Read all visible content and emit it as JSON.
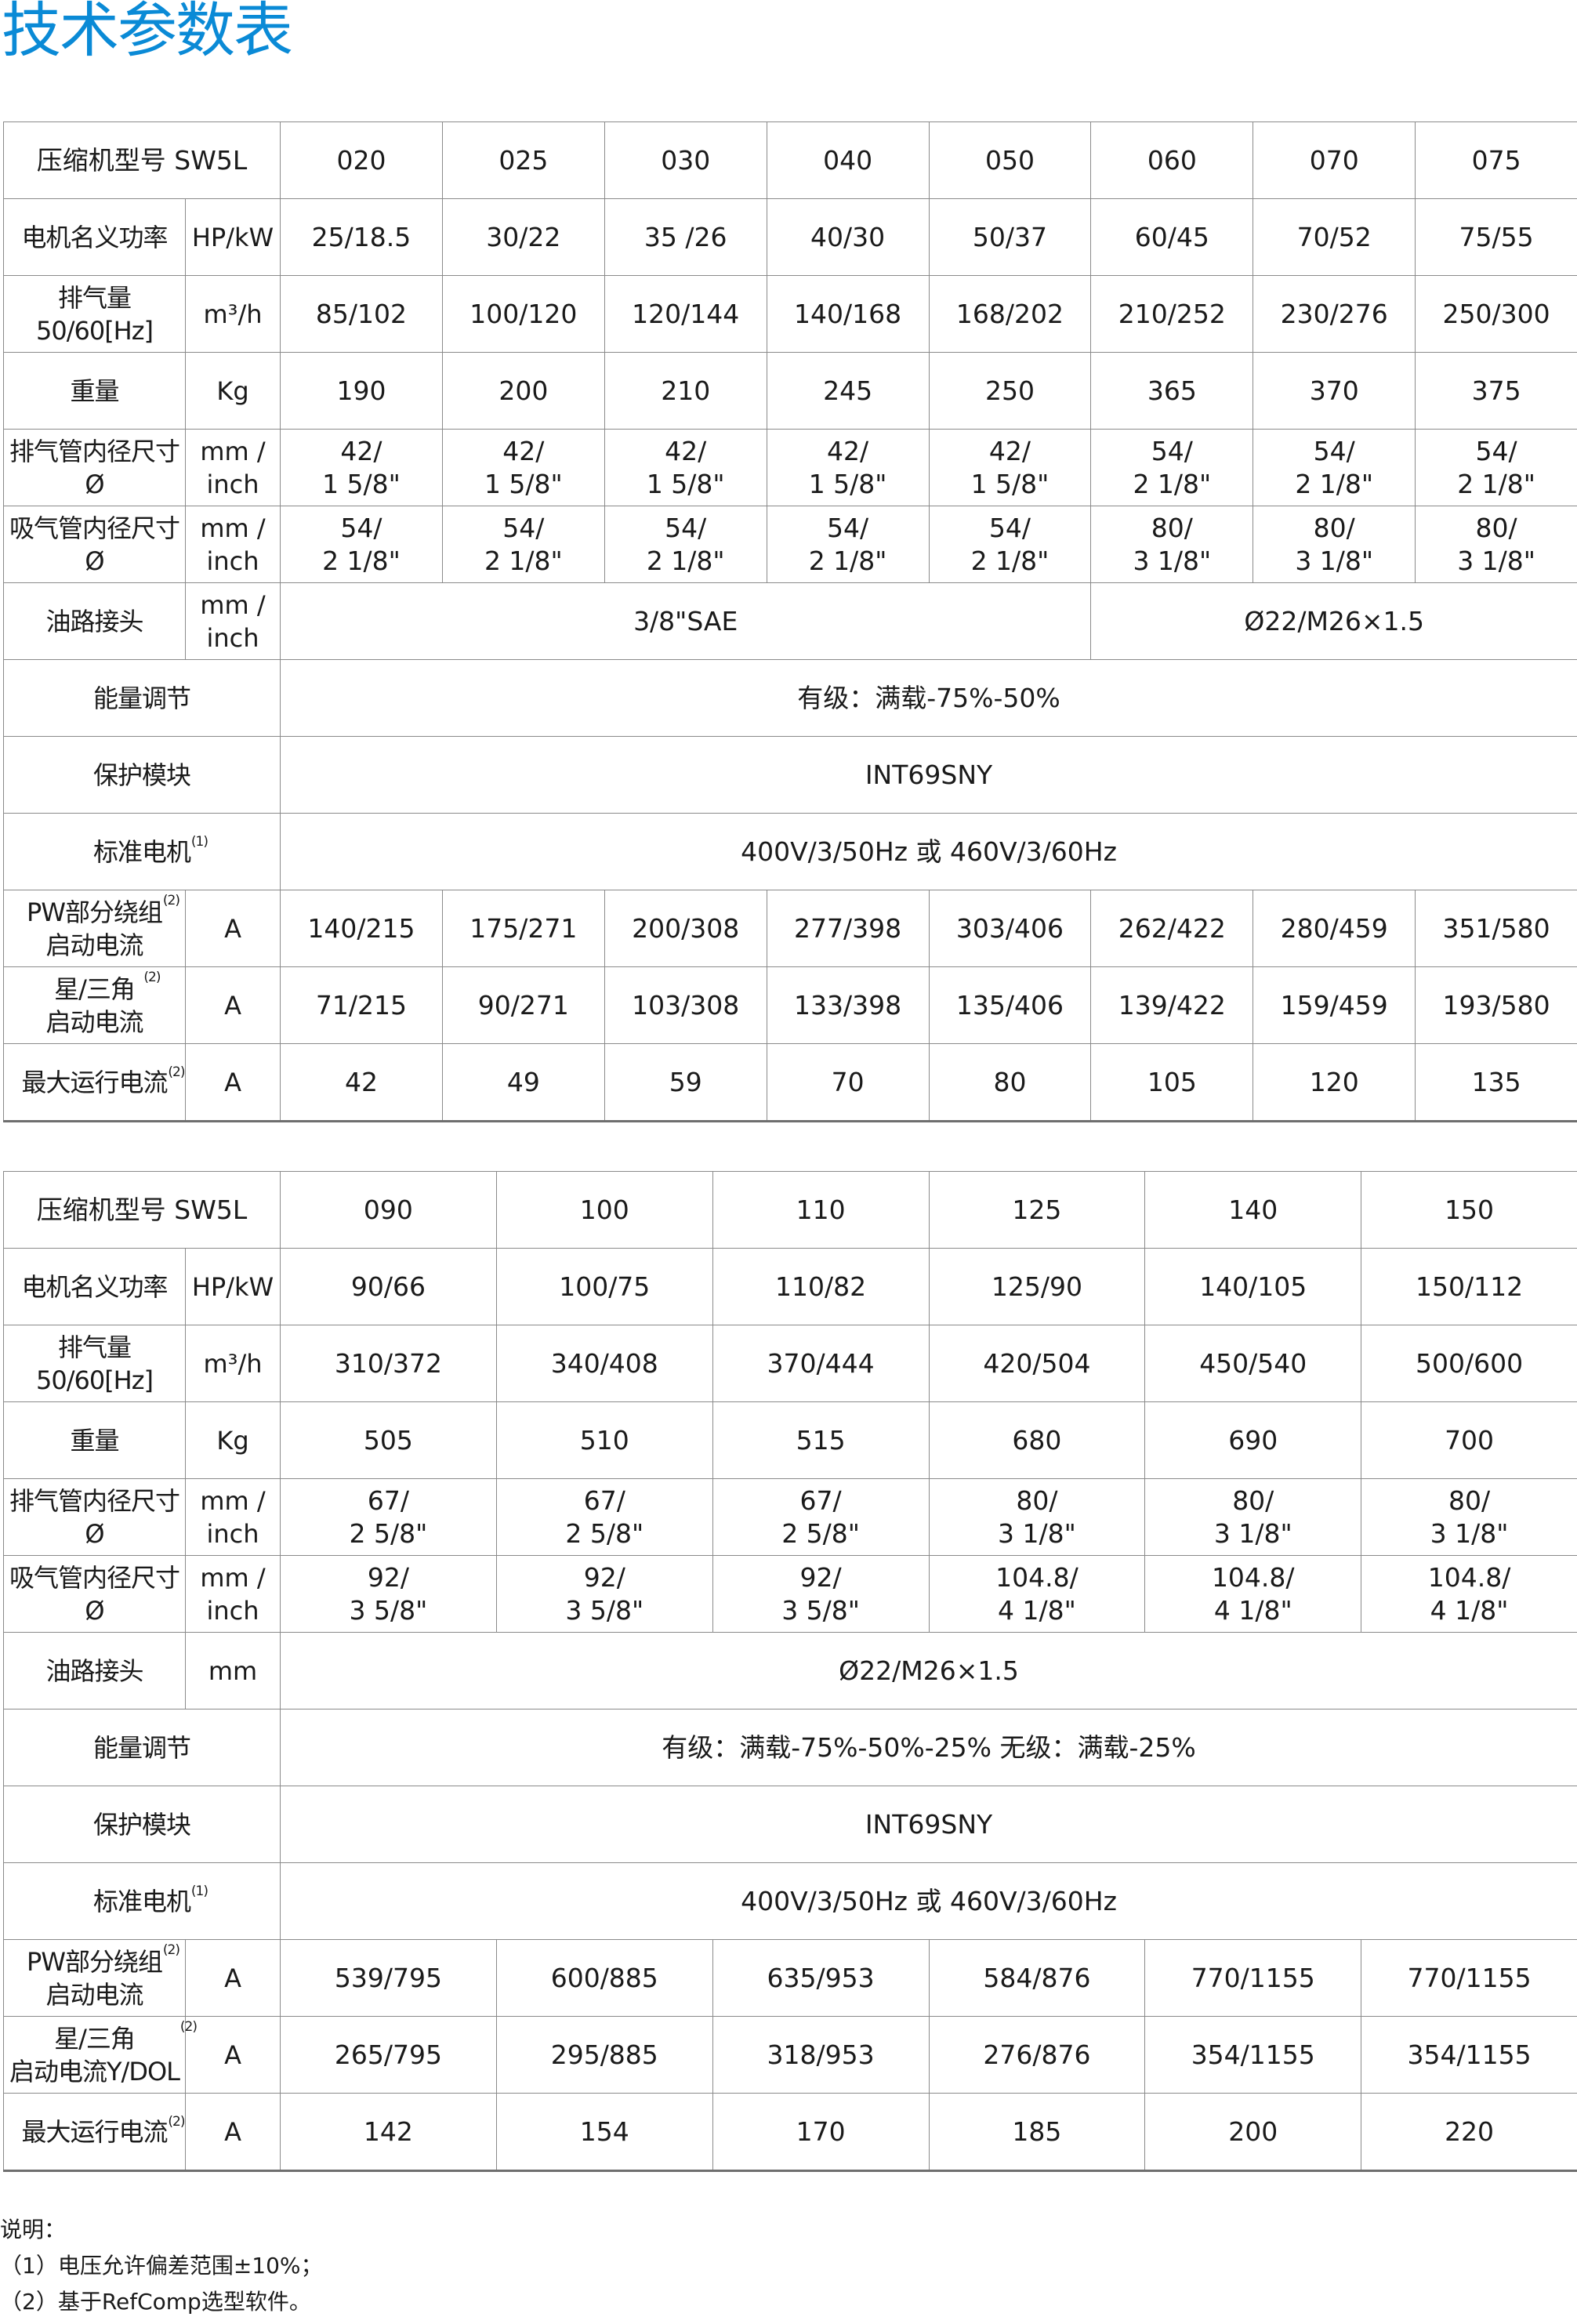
{
  "title": "技术参数表",
  "table1": {
    "header_label": "压缩机型号 SW5L",
    "models": [
      "020",
      "025",
      "030",
      "040",
      "050",
      "060",
      "070",
      "075"
    ],
    "rows": [
      {
        "label": "电机名义功率",
        "unit": "HP/kW",
        "values": [
          "25/18.5",
          "30/22",
          "35 /26",
          "40/30",
          "50/37",
          "60/45",
          "70/52",
          "75/55"
        ]
      },
      {
        "label": "排气量\n50/60[Hz]",
        "unit": "m³/h",
        "values": [
          "85/102",
          "100/120",
          "120/144",
          "140/168",
          "168/202",
          "210/252",
          "230/276",
          "250/300"
        ]
      },
      {
        "label": "重量",
        "unit": "Kg",
        "values": [
          "190",
          "200",
          "210",
          "245",
          "250",
          "365",
          "370",
          "375"
        ]
      },
      {
        "label": "排气管内径尺寸Ø",
        "unit": "mm /\ninch",
        "values": [
          "42/\n1 5/8\"",
          "42/\n1 5/8\"",
          "42/\n1 5/8\"",
          "42/\n1 5/8\"",
          "42/\n1 5/8\"",
          "54/\n2 1/8\"",
          "54/\n2 1/8\"",
          "54/\n2 1/8\""
        ]
      },
      {
        "label": "吸气管内径尺寸Ø",
        "unit": "mm /\ninch",
        "values": [
          "54/\n2 1/8\"",
          "54/\n2 1/8\"",
          "54/\n2 1/8\"",
          "54/\n2 1/8\"",
          "54/\n2 1/8\"",
          "80/\n3 1/8\"",
          "80/\n3 1/8\"",
          "80/\n3 1/8\""
        ]
      },
      {
        "label": "油路接头",
        "unit": "mm /\ninch",
        "spans": [
          {
            "text": "3/8\"SAE",
            "colspan": 5
          },
          {
            "text": "Ø22/M26×1.5",
            "colspan": 3
          }
        ]
      },
      {
        "label": "能量调节",
        "spans": [
          {
            "text": "有级：满载-75%-50%",
            "colspan": 8
          }
        ]
      },
      {
        "label": "保护模块",
        "spans": [
          {
            "text": "INT69SNY",
            "colspan": 8
          }
        ]
      },
      {
        "label": "标准电机",
        "sup": "(1)",
        "spans": [
          {
            "text": "400V/3/50Hz 或 460V/3/60Hz",
            "colspan": 8
          }
        ]
      },
      {
        "label": "PW部分绕组\n启动电流",
        "sup": "(2)",
        "unit": "A",
        "values": [
          "140/215",
          "175/271",
          "200/308",
          "277/398",
          "303/406",
          "262/422",
          "280/459",
          "351/580"
        ]
      },
      {
        "label": "星/三角\n启动电流",
        "sup": "(2)",
        "unit": "A",
        "values": [
          "71/215",
          "90/271",
          "103/308",
          "133/398",
          "135/406",
          "139/422",
          "159/459",
          "193/580"
        ]
      },
      {
        "label": "最大运行电流",
        "sup": "(2)",
        "unit": "A",
        "values": [
          "42",
          "49",
          "59",
          "70",
          "80",
          "105",
          "120",
          "135"
        ]
      }
    ]
  },
  "table2": {
    "header_label": "压缩机型号 SW5L",
    "models": [
      "090",
      "100",
      "110",
      "125",
      "140",
      "150"
    ],
    "rows": [
      {
        "label": "电机名义功率",
        "unit": "HP/kW",
        "values": [
          "90/66",
          "100/75",
          "110/82",
          "125/90",
          "140/105",
          "150/112"
        ]
      },
      {
        "label": "排气量\n50/60[Hz]",
        "unit": "m³/h",
        "values": [
          "310/372",
          "340/408",
          "370/444",
          "420/504",
          "450/540",
          "500/600"
        ]
      },
      {
        "label": "重量",
        "unit": "Kg",
        "values": [
          "505",
          "510",
          "515",
          "680",
          "690",
          "700"
        ]
      },
      {
        "label": "排气管内径尺寸Ø",
        "unit": "mm /\ninch",
        "values": [
          "67/\n2 5/8\"",
          "67/\n2 5/8\"",
          "67/\n2 5/8\"",
          "80/\n3 1/8\"",
          "80/\n3 1/8\"",
          "80/\n3 1/8\""
        ]
      },
      {
        "label": "吸气管内径尺寸Ø",
        "unit": "mm /\ninch",
        "values": [
          "92/\n3 5/8\"",
          "92/\n3 5/8\"",
          "92/\n3 5/8\"",
          "104.8/\n4 1/8\"",
          "104.8/\n4 1/8\"",
          "104.8/\n4 1/8\""
        ]
      },
      {
        "label": "油路接头",
        "unit": "mm",
        "spans": [
          {
            "text": "Ø22/M26×1.5",
            "colspan": 6
          }
        ]
      },
      {
        "label": "能量调节",
        "spans": [
          {
            "text": "有级：满载-75%-50%-25% 无级：满载-25%",
            "colspan": 6
          }
        ]
      },
      {
        "label": "保护模块",
        "spans": [
          {
            "text": "INT69SNY",
            "colspan": 6
          }
        ]
      },
      {
        "label": "标准电机",
        "sup": "(1)",
        "spans": [
          {
            "text": "400V/3/50Hz 或 460V/3/60Hz",
            "colspan": 6
          }
        ]
      },
      {
        "label": "PW部分绕组\n启动电流",
        "sup": "(2)",
        "unit": "A",
        "values": [
          "539/795",
          "600/885",
          "635/953",
          "584/876",
          "770/1155",
          "770/1155"
        ]
      },
      {
        "label": "星/三角\n启动电流Y/DOL",
        "sup": "(2)",
        "unit": "A",
        "values": [
          "265/795",
          "295/885",
          "318/953",
          "276/876",
          "354/1155",
          "354/1155"
        ]
      },
      {
        "label": "最大运行电流",
        "sup": "(2)",
        "unit": "A",
        "values": [
          "142",
          "154",
          "170",
          "185",
          "200",
          "220"
        ]
      }
    ]
  },
  "notes": {
    "heading": "说明：",
    "items": [
      "（1）电压允许偏差范围±10%；",
      "（2）基于RefComp选型软件。"
    ]
  }
}
